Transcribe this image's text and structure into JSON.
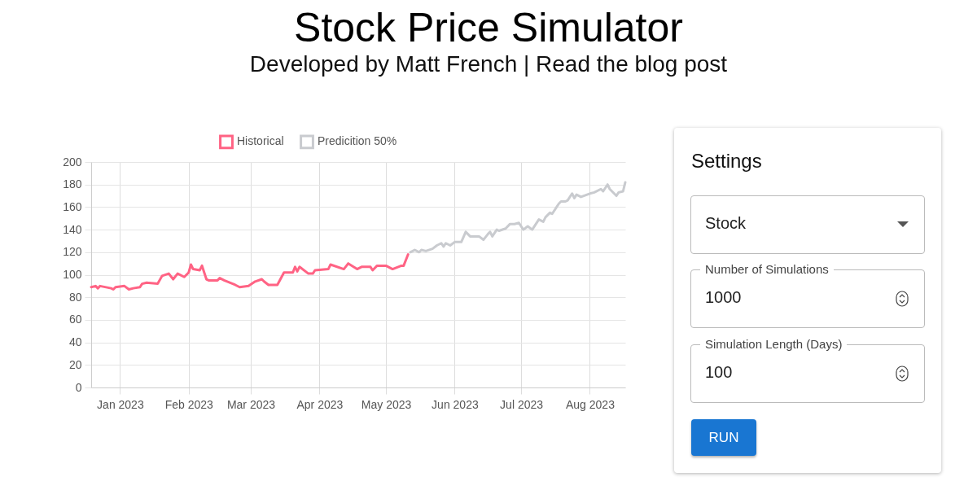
{
  "chart_data": [
    {
      "type": "line",
      "title": "Stock Price Simulator",
      "subtitle": "Developed by Matt French | Read the blog post",
      "xlim": [
        "2022-12-19",
        "2023-08-17"
      ],
      "xticks": [
        {
          "value": "2023-01-01",
          "label": "Jan 2023"
        },
        {
          "value": "2023-02-01",
          "label": "Feb 2023"
        },
        {
          "value": "2023-03-01",
          "label": "Mar 2023"
        },
        {
          "value": "2023-04-01",
          "label": "Apr 2023"
        },
        {
          "value": "2023-05-01",
          "label": "May 2023"
        },
        {
          "value": "2023-06-01",
          "label": "Jun 2023"
        },
        {
          "value": "2023-07-01",
          "label": "Jul 2023"
        },
        {
          "value": "2023-08-01",
          "label": "Aug 2023"
        }
      ],
      "ylim": [
        0,
        200
      ],
      "yticks": [
        0,
        20,
        40,
        60,
        80,
        100,
        120,
        140,
        160,
        180,
        200
      ],
      "grid": true,
      "legend": "top",
      "marker": "none",
      "line_style": "solid",
      "series": [
        {
          "name": "Historical",
          "color": "#ff6384",
          "x": [
            "2022-12-19",
            "2022-12-21",
            "2022-12-22",
            "2022-12-23",
            "2022-12-28",
            "2022-12-29",
            "2022-12-30",
            "2023-01-03",
            "2023-01-05",
            "2023-01-07",
            "2023-01-10",
            "2023-01-11",
            "2023-01-13",
            "2023-01-18",
            "2023-01-20",
            "2023-01-23",
            "2023-01-25",
            "2023-01-27",
            "2023-01-30",
            "2023-02-01",
            "2023-02-02",
            "2023-02-03",
            "2023-02-06",
            "2023-02-07",
            "2023-02-09",
            "2023-02-10",
            "2023-02-14",
            "2023-02-15",
            "2023-02-17",
            "2023-02-22",
            "2023-02-24",
            "2023-02-28",
            "2023-03-03",
            "2023-03-06",
            "2023-03-07",
            "2023-03-09",
            "2023-03-13",
            "2023-03-16",
            "2023-03-20",
            "2023-03-21",
            "2023-03-22",
            "2023-03-23",
            "2023-03-27",
            "2023-03-29",
            "2023-03-30",
            "2023-04-05",
            "2023-04-06",
            "2023-04-12",
            "2023-04-14",
            "2023-04-18",
            "2023-04-20",
            "2023-04-24",
            "2023-04-25",
            "2023-04-27",
            "2023-05-01",
            "2023-05-04",
            "2023-05-08",
            "2023-05-09",
            "2023-05-11"
          ],
          "values": [
            89,
            90,
            88,
            90,
            88,
            87,
            89,
            90,
            87,
            88,
            89,
            92,
            93,
            92,
            99,
            101,
            96,
            101,
            98,
            102,
            109,
            105,
            104,
            108,
            96,
            95,
            95,
            97,
            95,
            91,
            89,
            90,
            94,
            96,
            94,
            91,
            91,
            102,
            102,
            107,
            103,
            107,
            101,
            101,
            104,
            105,
            109,
            105,
            110,
            105,
            107,
            107,
            104,
            108,
            108,
            105,
            108,
            108,
            118
          ]
        },
        {
          "name": "Predicition 50%",
          "color": "#c9cbcf",
          "x": [
            "2023-05-12",
            "2023-05-14",
            "2023-05-16",
            "2023-05-17",
            "2023-05-19",
            "2023-05-22",
            "2023-05-24",
            "2023-05-26",
            "2023-05-27",
            "2023-05-28",
            "2023-05-30",
            "2023-06-01",
            "2023-06-04",
            "2023-06-06",
            "2023-06-08",
            "2023-06-10",
            "2023-06-12",
            "2023-06-14",
            "2023-06-16",
            "2023-06-17",
            "2023-06-18",
            "2023-06-20",
            "2023-06-21",
            "2023-06-24",
            "2023-06-26",
            "2023-06-28",
            "2023-06-30",
            "2023-07-02",
            "2023-07-04",
            "2023-07-06",
            "2023-07-09",
            "2023-07-11",
            "2023-07-12",
            "2023-07-14",
            "2023-07-15",
            "2023-07-18",
            "2023-07-19",
            "2023-07-21",
            "2023-07-22",
            "2023-07-24",
            "2023-07-25",
            "2023-07-26",
            "2023-07-28",
            "2023-08-01",
            "2023-08-03",
            "2023-08-06",
            "2023-08-07",
            "2023-08-09",
            "2023-08-10",
            "2023-08-13",
            "2023-08-14",
            "2023-08-16",
            "2023-08-17"
          ],
          "values": [
            120,
            122,
            120,
            122,
            121,
            123,
            126,
            128,
            125,
            128,
            126,
            129,
            129,
            138,
            134,
            134,
            134,
            131,
            136,
            138,
            134,
            140,
            139,
            141,
            145,
            145,
            146,
            140,
            143,
            140,
            149,
            147,
            151,
            155,
            154,
            163,
            165,
            165,
            166,
            172,
            168,
            171,
            169,
            172,
            173,
            176,
            174,
            180,
            176,
            170,
            173,
            174,
            182
          ]
        }
      ]
    },
    {
      "type": "other",
      "title": "Settings",
      "annotations": [
        "Stock",
        "Number of Simulations",
        "1000",
        "Simulation Length (Days)",
        "100",
        "RUN"
      ]
    }
  ]
}
